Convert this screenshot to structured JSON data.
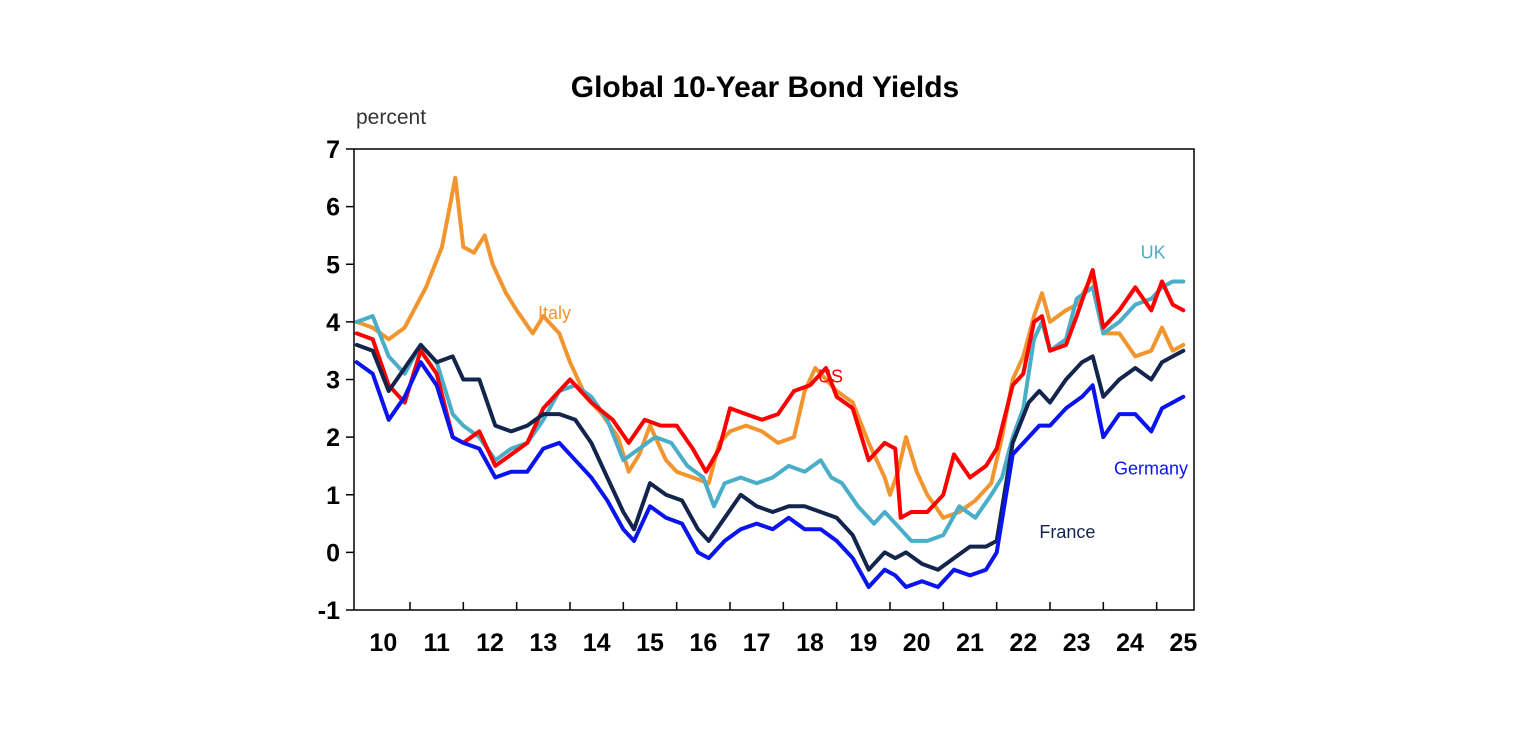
{
  "chart_data": {
    "type": "line",
    "title": "Global 10-Year Bond Yields",
    "ylabel": "percent",
    "xlabel": "",
    "ylim": [
      -1,
      7
    ],
    "yticks": [
      "-1",
      "0",
      "1",
      "2",
      "3",
      "4",
      "5",
      "6",
      "7"
    ],
    "xlim": [
      2009.95,
      2025.7
    ],
    "xticks": [
      "10",
      "11",
      "12",
      "13",
      "14",
      "15",
      "16",
      "17",
      "18",
      "19",
      "20",
      "21",
      "22",
      "23",
      "24",
      "25"
    ],
    "grid": false,
    "legend": "inline labels",
    "series": [
      {
        "name": "Italy",
        "color": "#f2952f",
        "x": [
          2010.0,
          2010.3,
          2010.6,
          2010.9,
          2011.3,
          2011.6,
          2011.85,
          2012.0,
          2012.2,
          2012.4,
          2012.55,
          2012.8,
          2013.0,
          2013.3,
          2013.5,
          2013.8,
          2014.0,
          2014.3,
          2014.6,
          2014.9,
          2015.1,
          2015.3,
          2015.5,
          2015.8,
          2016.0,
          2016.3,
          2016.6,
          2016.8,
          2017.0,
          2017.3,
          2017.6,
          2017.9,
          2018.2,
          2018.4,
          2018.6,
          2018.8,
          2019.0,
          2019.3,
          2019.6,
          2019.9,
          2020.0,
          2020.15,
          2020.3,
          2020.5,
          2020.7,
          2021.0,
          2021.3,
          2021.6,
          2021.9,
          2022.1,
          2022.3,
          2022.5,
          2022.7,
          2022.85,
          2023.0,
          2023.3,
          2023.5,
          2023.8,
          2024.0,
          2024.3,
          2024.6,
          2024.9,
          2025.1,
          2025.3,
          2025.5
        ],
        "values": [
          4.0,
          3.9,
          3.7,
          3.9,
          4.6,
          5.3,
          6.5,
          5.3,
          5.2,
          5.5,
          5.0,
          4.5,
          4.2,
          3.8,
          4.1,
          3.8,
          3.3,
          2.7,
          2.4,
          2.0,
          1.4,
          1.7,
          2.2,
          1.6,
          1.4,
          1.3,
          1.2,
          1.9,
          2.1,
          2.2,
          2.1,
          1.9,
          2.0,
          2.8,
          3.2,
          3.0,
          2.8,
          2.6,
          1.9,
          1.3,
          1.0,
          1.4,
          2.0,
          1.4,
          1.0,
          0.6,
          0.7,
          0.9,
          1.2,
          2.0,
          3.0,
          3.4,
          4.1,
          4.5,
          4.0,
          4.2,
          4.3,
          4.8,
          3.8,
          3.8,
          3.4,
          3.5,
          3.9,
          3.5,
          3.6
        ]
      },
      {
        "name": "UK",
        "color": "#4aaec8",
        "x": [
          2010.0,
          2010.3,
          2010.6,
          2010.9,
          2011.2,
          2011.5,
          2011.8,
          2012.0,
          2012.3,
          2012.6,
          2012.9,
          2013.2,
          2013.5,
          2013.8,
          2014.1,
          2014.4,
          2014.7,
          2015.0,
          2015.3,
          2015.6,
          2015.9,
          2016.2,
          2016.5,
          2016.7,
          2016.9,
          2017.2,
          2017.5,
          2017.8,
          2018.1,
          2018.4,
          2018.7,
          2018.9,
          2019.1,
          2019.4,
          2019.7,
          2019.9,
          2020.2,
          2020.4,
          2020.7,
          2021.0,
          2021.3,
          2021.6,
          2021.9,
          2022.1,
          2022.3,
          2022.5,
          2022.7,
          2022.85,
          2023.0,
          2023.3,
          2023.5,
          2023.8,
          2024.0,
          2024.3,
          2024.6,
          2024.9,
          2025.1,
          2025.3,
          2025.5
        ],
        "values": [
          4.0,
          4.1,
          3.4,
          3.1,
          3.6,
          3.3,
          2.4,
          2.2,
          2.0,
          1.6,
          1.8,
          1.9,
          2.3,
          2.8,
          2.9,
          2.7,
          2.3,
          1.6,
          1.8,
          2.0,
          1.9,
          1.5,
          1.3,
          0.8,
          1.2,
          1.3,
          1.2,
          1.3,
          1.5,
          1.4,
          1.6,
          1.3,
          1.2,
          0.8,
          0.5,
          0.7,
          0.4,
          0.2,
          0.2,
          0.3,
          0.8,
          0.6,
          1.0,
          1.3,
          2.0,
          2.5,
          3.7,
          4.0,
          3.5,
          3.7,
          4.4,
          4.6,
          3.8,
          4.0,
          4.3,
          4.4,
          4.6,
          4.7,
          4.7
        ]
      },
      {
        "name": "US",
        "color": "#ff0000",
        "x": [
          2010.0,
          2010.3,
          2010.6,
          2010.9,
          2011.2,
          2011.5,
          2011.8,
          2012.0,
          2012.3,
          2012.6,
          2012.9,
          2013.2,
          2013.5,
          2013.8,
          2014.0,
          2014.4,
          2014.8,
          2015.1,
          2015.4,
          2015.7,
          2016.0,
          2016.3,
          2016.55,
          2016.8,
          2017.0,
          2017.3,
          2017.6,
          2017.9,
          2018.2,
          2018.5,
          2018.8,
          2019.0,
          2019.3,
          2019.6,
          2019.9,
          2020.1,
          2020.2,
          2020.4,
          2020.7,
          2021.0,
          2021.2,
          2021.5,
          2021.8,
          2022.0,
          2022.3,
          2022.5,
          2022.7,
          2022.85,
          2023.0,
          2023.3,
          2023.5,
          2023.8,
          2024.0,
          2024.3,
          2024.6,
          2024.9,
          2025.1,
          2025.3,
          2025.5
        ],
        "values": [
          3.8,
          3.7,
          2.9,
          2.6,
          3.5,
          3.1,
          2.0,
          1.9,
          2.1,
          1.5,
          1.7,
          1.9,
          2.5,
          2.8,
          3.0,
          2.6,
          2.3,
          1.9,
          2.3,
          2.2,
          2.2,
          1.8,
          1.4,
          1.8,
          2.5,
          2.4,
          2.3,
          2.4,
          2.8,
          2.9,
          3.2,
          2.7,
          2.5,
          1.6,
          1.9,
          1.8,
          0.6,
          0.7,
          0.7,
          1.0,
          1.7,
          1.3,
          1.5,
          1.8,
          2.9,
          3.1,
          4.0,
          4.1,
          3.5,
          3.6,
          4.1,
          4.9,
          3.9,
          4.2,
          4.6,
          4.2,
          4.7,
          4.3,
          4.2
        ]
      },
      {
        "name": "France",
        "color": "#14254d",
        "x": [
          2010.0,
          2010.3,
          2010.6,
          2010.9,
          2011.2,
          2011.5,
          2011.8,
          2012.0,
          2012.3,
          2012.6,
          2012.9,
          2013.2,
          2013.5,
          2013.8,
          2014.1,
          2014.4,
          2014.7,
          2015.0,
          2015.2,
          2015.5,
          2015.8,
          2016.1,
          2016.4,
          2016.6,
          2016.9,
          2017.2,
          2017.5,
          2017.8,
          2018.1,
          2018.4,
          2018.7,
          2019.0,
          2019.3,
          2019.6,
          2019.9,
          2020.1,
          2020.3,
          2020.6,
          2020.9,
          2021.2,
          2021.5,
          2021.8,
          2022.0,
          2022.3,
          2022.6,
          2022.8,
          2023.0,
          2023.3,
          2023.6,
          2023.8,
          2024.0,
          2024.3,
          2024.6,
          2024.9,
          2025.1,
          2025.3,
          2025.5
        ],
        "values": [
          3.6,
          3.5,
          2.8,
          3.2,
          3.6,
          3.3,
          3.4,
          3.0,
          3.0,
          2.2,
          2.1,
          2.2,
          2.4,
          2.4,
          2.3,
          1.9,
          1.3,
          0.7,
          0.4,
          1.2,
          1.0,
          0.9,
          0.4,
          0.2,
          0.6,
          1.0,
          0.8,
          0.7,
          0.8,
          0.8,
          0.7,
          0.6,
          0.3,
          -0.3,
          0.0,
          -0.1,
          0.0,
          -0.2,
          -0.3,
          -0.1,
          0.1,
          0.1,
          0.2,
          1.9,
          2.6,
          2.8,
          2.6,
          3.0,
          3.3,
          3.4,
          2.7,
          3.0,
          3.2,
          3.0,
          3.3,
          3.4,
          3.5
        ]
      },
      {
        "name": "Germany",
        "color": "#0a14ee",
        "x": [
          2010.0,
          2010.3,
          2010.6,
          2010.9,
          2011.2,
          2011.5,
          2011.8,
          2012.0,
          2012.3,
          2012.6,
          2012.9,
          2013.2,
          2013.5,
          2013.8,
          2014.1,
          2014.4,
          2014.7,
          2015.0,
          2015.2,
          2015.5,
          2015.8,
          2016.1,
          2016.4,
          2016.6,
          2016.9,
          2017.2,
          2017.5,
          2017.8,
          2018.1,
          2018.4,
          2018.7,
          2019.0,
          2019.3,
          2019.6,
          2019.9,
          2020.1,
          2020.3,
          2020.6,
          2020.9,
          2021.2,
          2021.5,
          2021.8,
          2022.0,
          2022.3,
          2022.6,
          2022.8,
          2023.0,
          2023.3,
          2023.6,
          2023.8,
          2024.0,
          2024.3,
          2024.6,
          2024.9,
          2025.1,
          2025.3,
          2025.5
        ],
        "values": [
          3.3,
          3.1,
          2.3,
          2.7,
          3.3,
          2.9,
          2.0,
          1.9,
          1.8,
          1.3,
          1.4,
          1.4,
          1.8,
          1.9,
          1.6,
          1.3,
          0.9,
          0.4,
          0.2,
          0.8,
          0.6,
          0.5,
          0.0,
          -0.1,
          0.2,
          0.4,
          0.5,
          0.4,
          0.6,
          0.4,
          0.4,
          0.2,
          -0.1,
          -0.6,
          -0.3,
          -0.4,
          -0.6,
          -0.5,
          -0.6,
          -0.3,
          -0.4,
          -0.3,
          0.0,
          1.7,
          2.0,
          2.2,
          2.2,
          2.5,
          2.7,
          2.9,
          2.0,
          2.4,
          2.4,
          2.1,
          2.5,
          2.6,
          2.7
        ]
      }
    ],
    "annotations": [
      {
        "text": "Italy",
        "color": "#f2952f",
        "x": 2013.4,
        "y": 4.05
      },
      {
        "text": "US",
        "color": "#ff0000",
        "x": 2018.65,
        "y": 2.95
      },
      {
        "text": "UK",
        "color": "#4aaec8",
        "x": 2024.7,
        "y": 5.1
      },
      {
        "text": "Germany",
        "color": "#0a14ee",
        "x": 2024.2,
        "y": 1.35
      },
      {
        "text": "France",
        "color": "#14254d",
        "x": 2022.8,
        "y": 0.25
      }
    ]
  }
}
